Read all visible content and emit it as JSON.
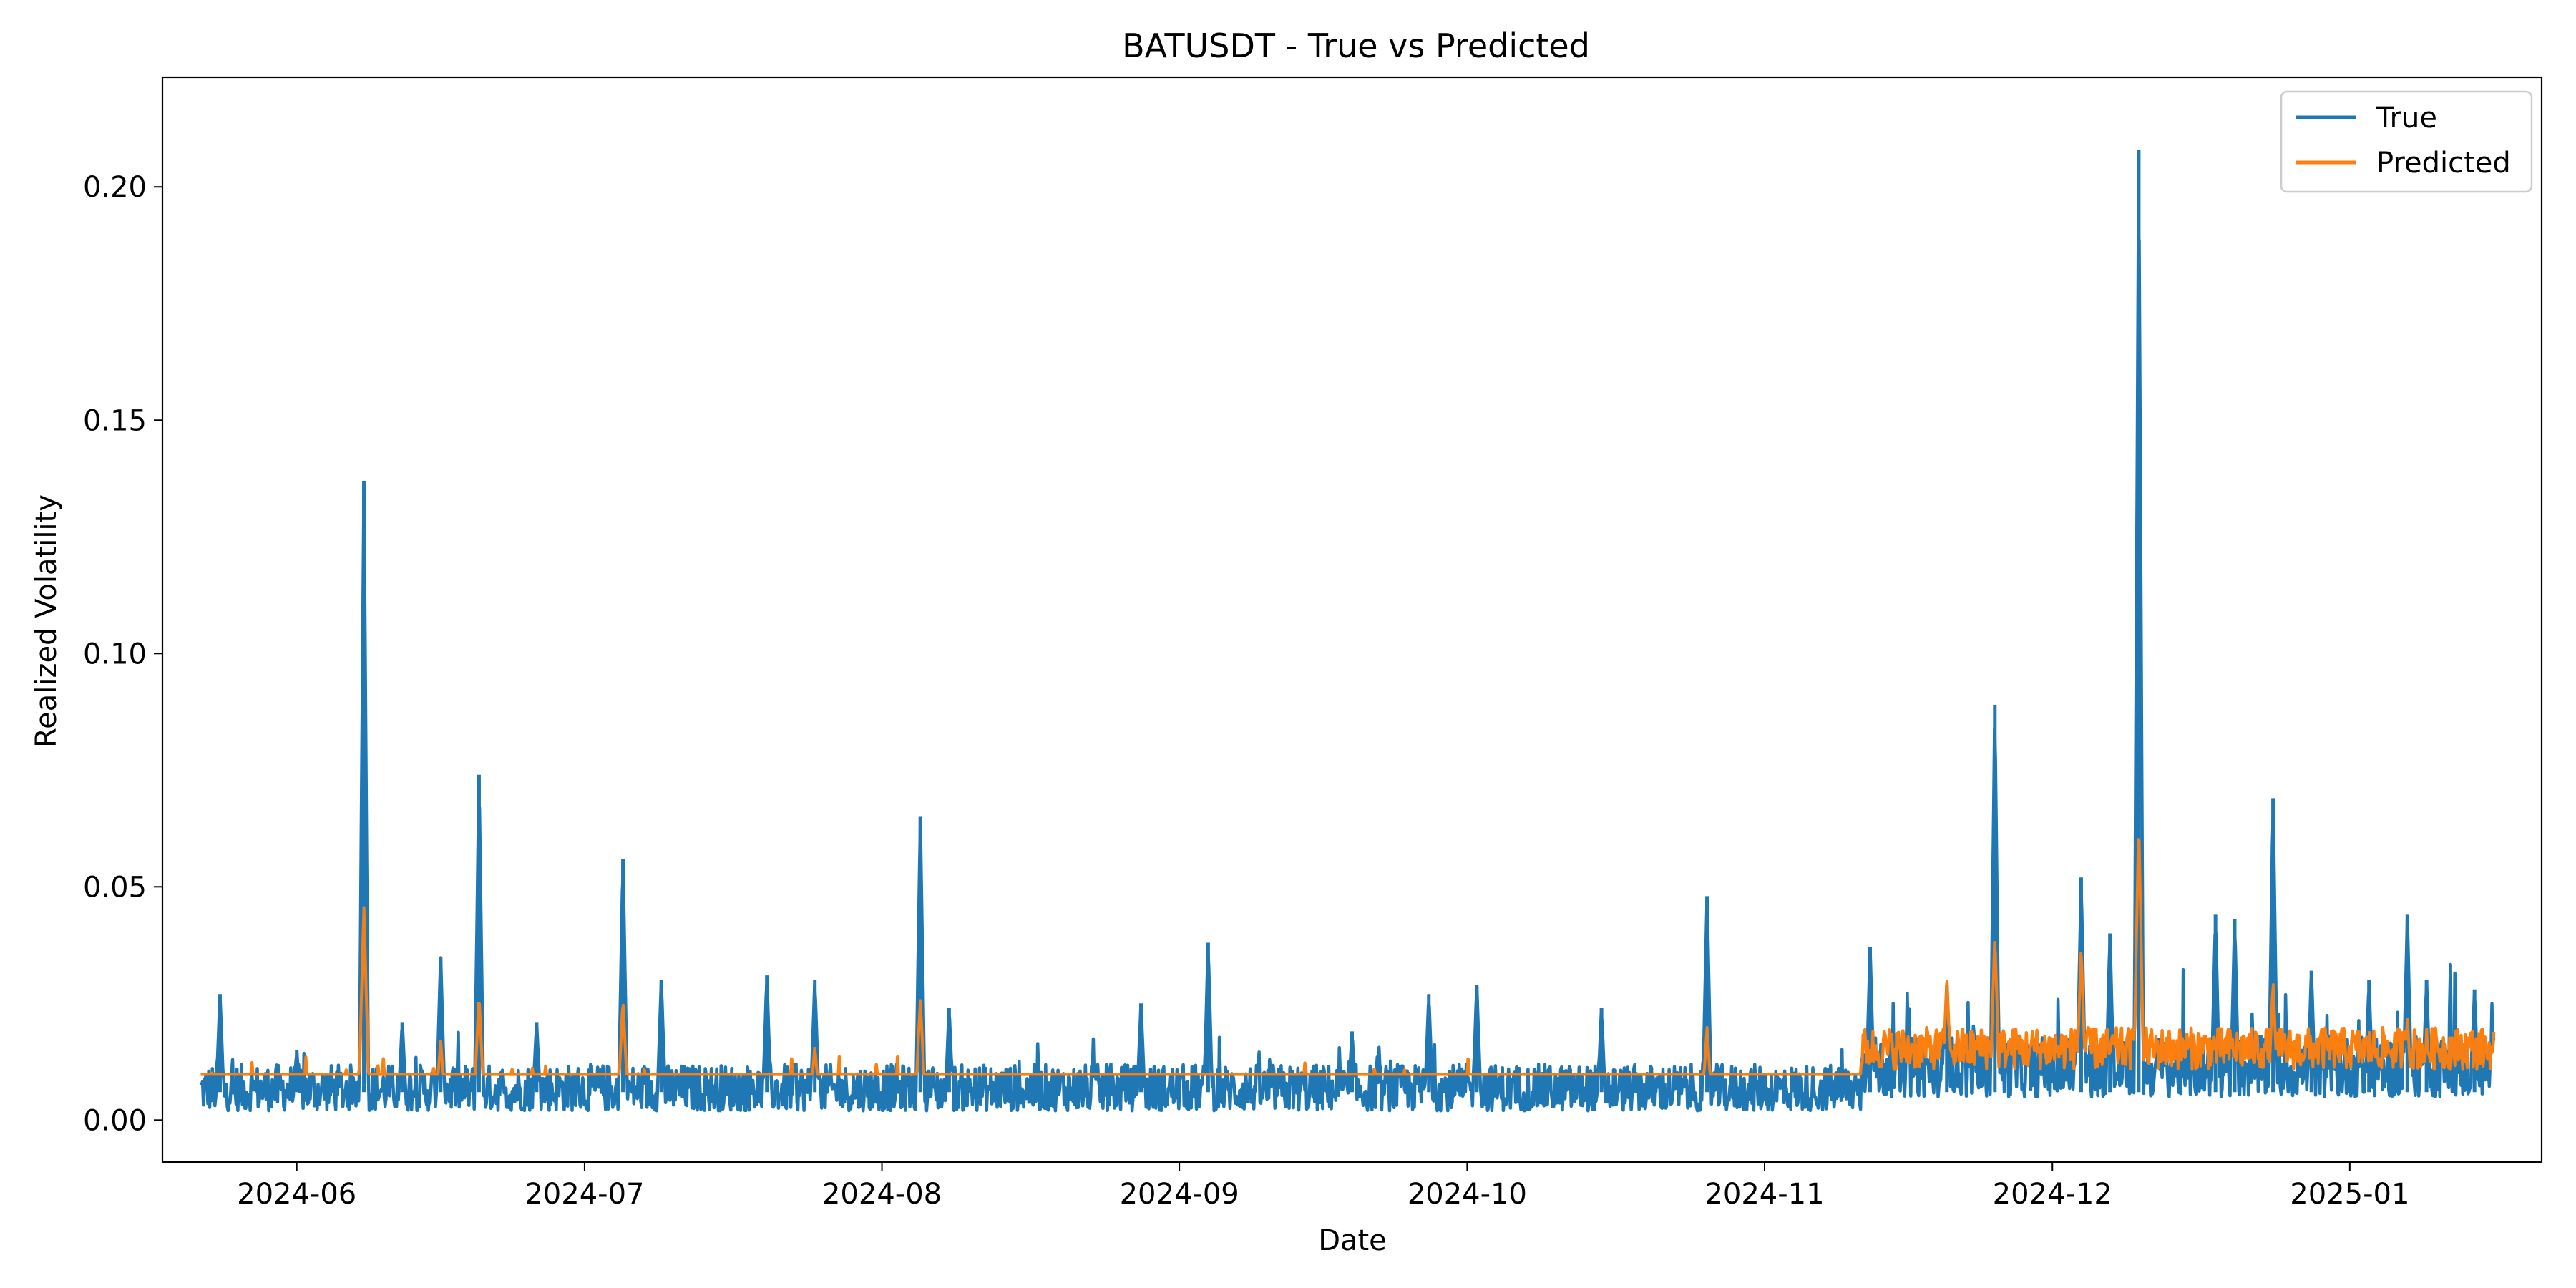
{
  "chart_data": {
    "type": "line",
    "title": "BATUSDT - True vs Predicted",
    "xlabel": "Date",
    "ylabel": "Realized Volatility",
    "x_range": [
      "2024-05-18",
      "2025-01-21"
    ],
    "data_x_range": [
      "2024-05-22",
      "2025-01-16"
    ],
    "ylim": [
      -0.009,
      0.2235
    ],
    "x_ticks": [
      "2024-06",
      "2024-07",
      "2024-08",
      "2024-09",
      "2024-10",
      "2024-11",
      "2024-12",
      "2025-01"
    ],
    "y_ticks": [
      "0.00",
      "0.05",
      "0.10",
      "0.15",
      "0.20"
    ],
    "grid": false,
    "legend_position": "top-right",
    "colors": {
      "true": "#1f77b4",
      "predicted": "#ff7f0e"
    },
    "series": [
      {
        "name": "True",
        "color": "#1f77b4",
        "baseline_range": [
          0.002,
          0.012
        ],
        "spikes": [
          {
            "x": "2024-05-24",
            "y": 0.027
          },
          {
            "x": "2024-06-01",
            "y": 0.015
          },
          {
            "x": "2024-06-08",
            "y": 0.137
          },
          {
            "x": "2024-06-12",
            "y": 0.021
          },
          {
            "x": "2024-06-16",
            "y": 0.035
          },
          {
            "x": "2024-06-20",
            "y": 0.074
          },
          {
            "x": "2024-06-26",
            "y": 0.021
          },
          {
            "x": "2024-07-05",
            "y": 0.056
          },
          {
            "x": "2024-07-09",
            "y": 0.03
          },
          {
            "x": "2024-07-20",
            "y": 0.031
          },
          {
            "x": "2024-07-25",
            "y": 0.03
          },
          {
            "x": "2024-08-05",
            "y": 0.065
          },
          {
            "x": "2024-08-08",
            "y": 0.024
          },
          {
            "x": "2024-08-28",
            "y": 0.025
          },
          {
            "x": "2024-09-04",
            "y": 0.038
          },
          {
            "x": "2024-09-19",
            "y": 0.019
          },
          {
            "x": "2024-09-27",
            "y": 0.027
          },
          {
            "x": "2024-10-02",
            "y": 0.029
          },
          {
            "x": "2024-10-15",
            "y": 0.024
          },
          {
            "x": "2024-10-26",
            "y": 0.048
          },
          {
            "x": "2024-11-12",
            "y": 0.037
          },
          {
            "x": "2024-11-20",
            "y": 0.029
          },
          {
            "x": "2024-11-25",
            "y": 0.089
          },
          {
            "x": "2024-12-04",
            "y": 0.052
          },
          {
            "x": "2024-12-07",
            "y": 0.04
          },
          {
            "x": "2024-12-10",
            "y": 0.208
          },
          {
            "x": "2024-12-18",
            "y": 0.044
          },
          {
            "x": "2024-12-20",
            "y": 0.043
          },
          {
            "x": "2024-12-24",
            "y": 0.069
          },
          {
            "x": "2024-12-28",
            "y": 0.032
          },
          {
            "x": "2025-01-03",
            "y": 0.03
          },
          {
            "x": "2025-01-07",
            "y": 0.044
          },
          {
            "x": "2025-01-09",
            "y": 0.03
          },
          {
            "x": "2025-01-14",
            "y": 0.028
          }
        ]
      },
      {
        "name": "Predicted",
        "color": "#ff7f0e",
        "baseline": 0.0098,
        "spikes": [
          {
            "x": "2024-06-08",
            "y": 0.046
          },
          {
            "x": "2024-06-16",
            "y": 0.017
          },
          {
            "x": "2024-06-20",
            "y": 0.027
          },
          {
            "x": "2024-07-05",
            "y": 0.026
          },
          {
            "x": "2024-07-25",
            "y": 0.016
          },
          {
            "x": "2024-08-05",
            "y": 0.026
          },
          {
            "x": "2024-10-26",
            "y": 0.02
          },
          {
            "x": "2024-11-20",
            "y": 0.03
          },
          {
            "x": "2024-11-25",
            "y": 0.04
          },
          {
            "x": "2024-12-04",
            "y": 0.037
          },
          {
            "x": "2024-12-10",
            "y": 0.065
          },
          {
            "x": "2024-12-24",
            "y": 0.03
          },
          {
            "x": "2025-01-07",
            "y": 0.022
          }
        ]
      }
    ]
  }
}
